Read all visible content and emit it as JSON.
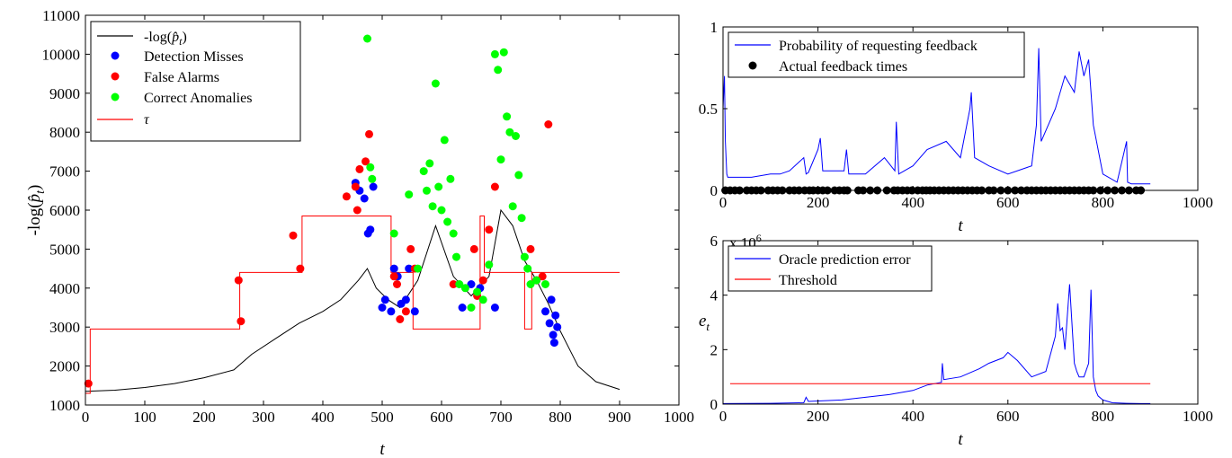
{
  "charts": [
    {
      "id": "left",
      "type": "line",
      "xlabel": "t",
      "ylabel": "-log(p̂_t)",
      "xlim": [
        0,
        1000
      ],
      "ylim": [
        1000,
        11000
      ],
      "xticks": [
        "0",
        "100",
        "200",
        "300",
        "400",
        "500",
        "600",
        "700",
        "800",
        "900",
        "1000"
      ],
      "yticks": [
        "1000",
        "2000",
        "3000",
        "4000",
        "5000",
        "6000",
        "7000",
        "8000",
        "9000",
        "10000",
        "11000"
      ],
      "legend": [
        "-log(p̂_t)",
        "Detection Misses",
        "False Alarms",
        "Correct Anomalies",
        "τ"
      ]
    },
    {
      "id": "top-right",
      "type": "line",
      "xlabel": "t",
      "xlim": [
        0,
        1000
      ],
      "ylim": [
        0,
        1
      ],
      "xticks": [
        "0",
        "200",
        "400",
        "600",
        "800",
        "1000"
      ],
      "yticks": [
        "0",
        "0.5",
        "1"
      ],
      "legend": [
        "Probability of requesting feedback",
        "Actual feedback times"
      ]
    },
    {
      "id": "bottom-right",
      "type": "line",
      "xlabel": "t",
      "ylabel": "e_t",
      "multiplier": "x 10",
      "multiplier_exp": "6",
      "xlim": [
        0,
        1000
      ],
      "ylim": [
        0,
        6
      ],
      "xticks": [
        "0",
        "200",
        "400",
        "600",
        "800",
        "1000"
      ],
      "yticks": [
        "0",
        "2",
        "4",
        "6"
      ],
      "legend": [
        "Oracle prediction error",
        "Threshold"
      ]
    }
  ],
  "chart_data": [
    {
      "type": "line",
      "xlabel": "t",
      "ylabel": "-log(p̂_t)",
      "xlim": [
        0,
        1000
      ],
      "ylim": [
        1000,
        11000
      ],
      "series": [
        {
          "name": "-log(p̂_t)",
          "color": "#000000",
          "x": [
            0,
            50,
            100,
            150,
            200,
            250,
            280,
            320,
            360,
            400,
            430,
            460,
            475,
            490,
            510,
            530,
            560,
            590,
            620,
            650,
            680,
            700,
            720,
            740,
            760,
            780,
            800,
            830,
            860,
            900
          ],
          "y": [
            1350,
            1380,
            1450,
            1550,
            1700,
            1900,
            2300,
            2700,
            3100,
            3400,
            3700,
            4200,
            4500,
            4000,
            3700,
            3500,
            4200,
            5600,
            4300,
            3800,
            4300,
            6000,
            5600,
            4700,
            4200,
            3600,
            2900,
            2000,
            1600,
            1400
          ]
        },
        {
          "name": "τ",
          "color": "#ff0000",
          "x": [
            0,
            8,
            8,
            260,
            260,
            365,
            365,
            515,
            515,
            552,
            552,
            665,
            665,
            672,
            672,
            740,
            740,
            752,
            752,
            900
          ],
          "y": [
            1300,
            1300,
            2950,
            2950,
            4400,
            4400,
            5850,
            5850,
            4400,
            4400,
            2950,
            2950,
            5850,
            5850,
            4400,
            4400,
            2950,
            2950,
            4400,
            4400
          ]
        }
      ],
      "markers": {
        "Detection Misses": {
          "color": "#0000ff",
          "x": [
            455,
            462,
            470,
            476,
            480,
            485,
            500,
            505,
            515,
            520,
            526,
            532,
            540,
            545,
            555,
            635,
            650,
            665,
            690,
            760,
            775,
            782,
            785,
            788,
            790,
            792,
            795
          ],
          "y": [
            6700,
            6500,
            6300,
            5400,
            5500,
            6600,
            3500,
            3700,
            3400,
            4500,
            4300,
            3600,
            3700,
            4500,
            3400,
            3500,
            4100,
            4000,
            3500,
            4200,
            3400,
            3100,
            3700,
            2800,
            2600,
            3300,
            3000
          ]
        },
        "False Alarms": {
          "color": "#ff0000",
          "x": [
            5,
            258,
            262,
            350,
            362,
            440,
            455,
            458,
            462,
            472,
            478,
            520,
            525,
            530,
            540,
            548,
            555,
            620,
            655,
            660,
            670,
            680,
            690,
            750,
            760,
            770,
            780
          ],
          "y": [
            1550,
            4200,
            3150,
            5350,
            4500,
            6350,
            6600,
            6000,
            7050,
            7250,
            7950,
            4300,
            4100,
            3200,
            3400,
            5000,
            4500,
            4100,
            5000,
            3800,
            4200,
            5500,
            6600,
            5000,
            4200,
            4300,
            8200
          ]
        },
        "Correct Anomalies": {
          "color": "#00ff00",
          "x": [
            475,
            480,
            483,
            520,
            545,
            560,
            570,
            575,
            580,
            585,
            590,
            595,
            600,
            605,
            610,
            615,
            620,
            625,
            630,
            640,
            650,
            660,
            670,
            680,
            690,
            695,
            700,
            705,
            710,
            715,
            720,
            725,
            730,
            735,
            740,
            745,
            750,
            760,
            775
          ],
          "y": [
            10400,
            7100,
            6800,
            5400,
            6400,
            4500,
            7000,
            6500,
            7200,
            6100,
            9250,
            6600,
            6000,
            7800,
            5700,
            6800,
            5400,
            4800,
            4100,
            4000,
            3500,
            3900,
            3700,
            4600,
            10000,
            9600,
            7300,
            10050,
            8400,
            8000,
            6100,
            7900,
            6900,
            5800,
            4800,
            4500,
            4100,
            4200,
            4100
          ]
        }
      }
    },
    {
      "type": "line",
      "xlabel": "t",
      "xlim": [
        0,
        1000
      ],
      "ylim": [
        0,
        1
      ],
      "series": [
        {
          "name": "Probability of requesting feedback",
          "color": "#0000ff",
          "x": [
            0,
            3,
            5,
            8,
            10,
            12,
            60,
            100,
            120,
            140,
            170,
            175,
            180,
            200,
            205,
            210,
            255,
            260,
            265,
            300,
            340,
            362,
            365,
            370,
            400,
            430,
            470,
            500,
            520,
            523,
            530,
            560,
            600,
            650,
            660,
            665,
            670,
            700,
            720,
            740,
            750,
            760,
            770,
            780,
            800,
            830,
            850,
            852,
            860,
            900
          ],
          "y": [
            0.5,
            0.7,
            0.3,
            0.1,
            0.08,
            0.08,
            0.08,
            0.1,
            0.1,
            0.12,
            0.2,
            0.1,
            0.11,
            0.25,
            0.32,
            0.12,
            0.12,
            0.25,
            0.1,
            0.1,
            0.2,
            0.12,
            0.42,
            0.1,
            0.15,
            0.25,
            0.3,
            0.2,
            0.5,
            0.6,
            0.2,
            0.15,
            0.1,
            0.15,
            0.4,
            0.87,
            0.3,
            0.5,
            0.7,
            0.6,
            0.85,
            0.7,
            0.8,
            0.4,
            0.1,
            0.05,
            0.3,
            0.05,
            0.04,
            0.04
          ]
        }
      ],
      "markers": {
        "Actual feedback times": {
          "color": "#000000",
          "x": [
            5,
            15,
            25,
            35,
            50,
            60,
            70,
            80,
            95,
            105,
            115,
            125,
            140,
            150,
            160,
            172,
            182,
            190,
            200,
            210,
            220,
            235,
            245,
            255,
            262,
            285,
            295,
            310,
            325,
            345,
            360,
            368,
            378,
            388,
            398,
            410,
            420,
            428,
            436,
            445,
            455,
            465,
            475,
            485,
            495,
            505,
            515,
            525,
            535,
            545,
            560,
            570,
            585,
            600,
            615,
            628,
            640,
            650,
            660,
            670,
            680,
            690,
            700,
            710,
            720,
            730,
            740,
            750,
            760,
            770,
            780,
            795,
            810,
            825,
            840,
            855,
            870,
            880
          ],
          "y": 0
        }
      }
    },
    {
      "type": "line",
      "xlabel": "t",
      "ylabel": "e_t",
      "xlim": [
        0,
        1000
      ],
      "ylim": [
        0,
        6
      ],
      "series": [
        {
          "name": "Oracle prediction error",
          "color": "#0000ff",
          "x": [
            0,
            100,
            170,
            175,
            180,
            250,
            300,
            350,
            400,
            430,
            460,
            462,
            465,
            500,
            540,
            560,
            590,
            600,
            620,
            650,
            680,
            700,
            705,
            710,
            715,
            720,
            730,
            740,
            745,
            750,
            760,
            770,
            775,
            780,
            785,
            790,
            800,
            820,
            850,
            880,
            900
          ],
          "y": [
            0.02,
            0.03,
            0.05,
            0.25,
            0.1,
            0.15,
            0.25,
            0.35,
            0.5,
            0.7,
            0.8,
            1.5,
            0.9,
            1.0,
            1.3,
            1.5,
            1.7,
            1.9,
            1.6,
            1.0,
            1.2,
            2.5,
            3.7,
            2.7,
            2.8,
            2.0,
            4.4,
            1.5,
            1.2,
            1.0,
            1.0,
            1.5,
            4.2,
            1.0,
            0.5,
            0.3,
            0.15,
            0.05,
            0.03,
            0.02,
            0.02
          ]
        },
        {
          "name": "Threshold",
          "color": "#ff0000",
          "x": [
            15,
            900
          ],
          "y": [
            0.75,
            0.75
          ]
        }
      ]
    }
  ]
}
